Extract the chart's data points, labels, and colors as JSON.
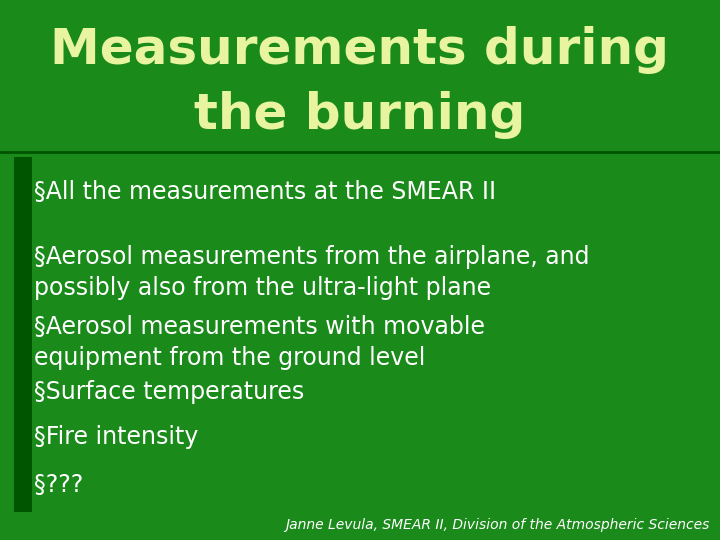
{
  "title_line1": "Measurements during",
  "title_line2": "the burning",
  "title_color": "#e8f4a0",
  "background_color": "#1a8a1a",
  "title_bg_color": "#1a8a1a",
  "separator_color": "#005500",
  "bullet_marker_color": "#66cc44",
  "body_text_color": "#ffffff",
  "bullets": [
    "§All the measurements at the SMEAR II",
    "§Aerosol measurements from the airplane, and\npossibly also from the ultra-light plane",
    "§Aerosol measurements with movable\nequipment from the ground level",
    "§Surface temperatures",
    "§Fire intensity",
    "§???"
  ],
  "footer": "Janne Levula, SMEAR II, Division of the Atmospheric Sciences",
  "footer_color": "#ffffff",
  "left_bar_color": "#005500",
  "title_fontsize": 36,
  "body_fontsize": 17,
  "footer_fontsize": 10
}
